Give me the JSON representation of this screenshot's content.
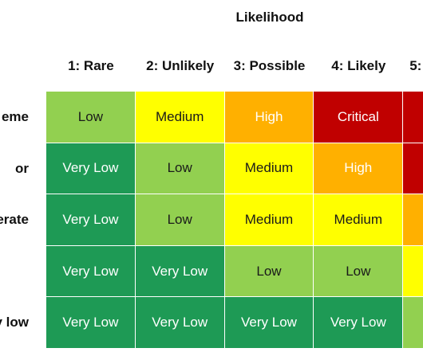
{
  "title": "Likelihood",
  "columns": [
    "1: Rare",
    "2: Unlikely",
    "3: Possible",
    "4: Likely",
    "5:"
  ],
  "rows": [
    "eme",
    "or",
    "lerate",
    "",
    "y low"
  ],
  "levels": {
    "Very Low": {
      "bg": "#1e9a55",
      "fg": "#ffffff"
    },
    "Low": {
      "bg": "#92d050",
      "fg": "#1a1a1a"
    },
    "Medium": {
      "bg": "#ffff00",
      "fg": "#1a1a1a"
    },
    "High": {
      "bg": "#ffb000",
      "fg": "#ffffff"
    },
    "Critical": {
      "bg": "#c00000",
      "fg": "#ffffff"
    }
  },
  "grid": [
    [
      "Low",
      "Medium",
      "High",
      "Critical",
      ""
    ],
    [
      "Very Low",
      "Low",
      "Medium",
      "High",
      ""
    ],
    [
      "Very Low",
      "Low",
      "Medium",
      "Medium",
      ""
    ],
    [
      "Very Low",
      "Very Low",
      "Low",
      "Low",
      ""
    ],
    [
      "Very Low",
      "Very Low",
      "Very Low",
      "Very Low",
      ""
    ]
  ],
  "partial_column_colors": [
    "#c00000",
    "#c00000",
    "#ffb000",
    "#ffff00",
    "#92d050"
  ]
}
